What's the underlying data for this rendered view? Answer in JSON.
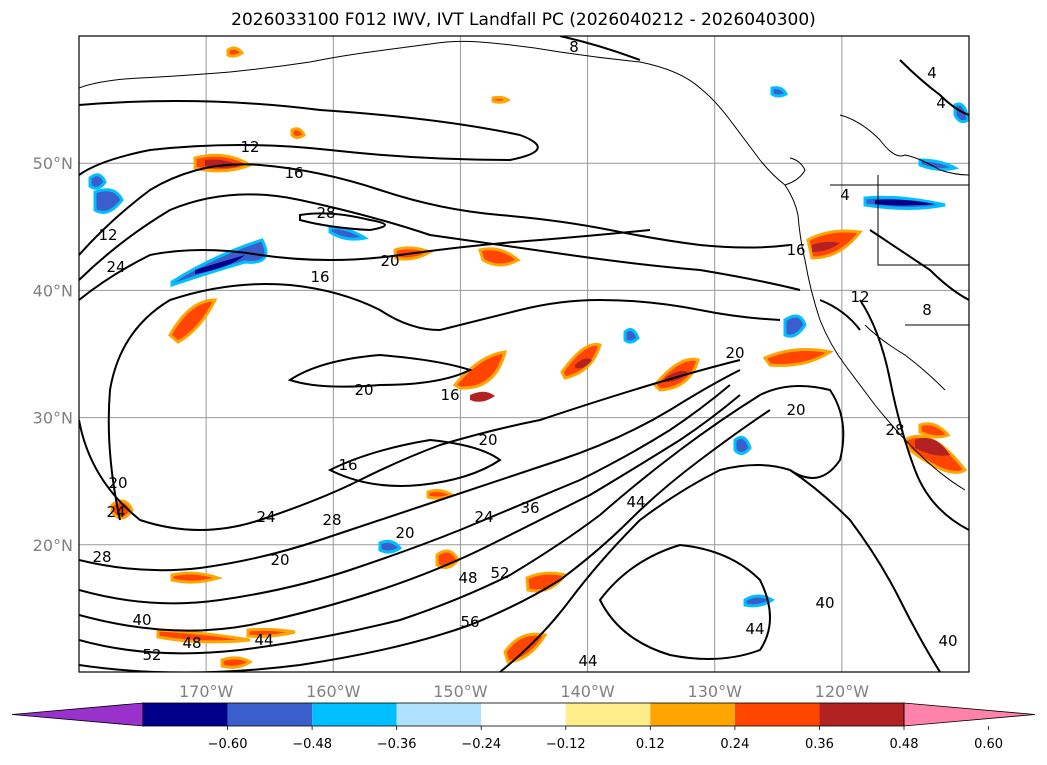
{
  "title": "2026033100 F012 IWV, IVT Landfall PC (2026040212 - 2026040300)",
  "map": {
    "lon_range": [
      -180,
      -110
    ],
    "lat_range": [
      10,
      60
    ],
    "lat_labels": [
      "50°N",
      "40°N",
      "30°N",
      "20°N"
    ],
    "lat_values": [
      50,
      40,
      30,
      20
    ],
    "lon_labels": [
      "170°W",
      "160°W",
      "150°W",
      "140°W",
      "130°W",
      "120°W"
    ],
    "lon_values": [
      -170,
      -160,
      -150,
      -140,
      -130,
      -120
    ],
    "grid": true,
    "contour_labels": [
      "8",
      "4",
      "4",
      "4",
      "12",
      "16",
      "12",
      "24",
      "28",
      "20",
      "16",
      "16",
      "20",
      "16",
      "20",
      "16",
      "24",
      "28",
      "24",
      "20",
      "20",
      "20",
      "36",
      "44",
      "48",
      "52",
      "56",
      "40",
      "48",
      "44",
      "52",
      "44",
      "40",
      "44",
      "40",
      "28",
      "20",
      "20",
      "12",
      "8",
      "28",
      "24"
    ]
  },
  "colorbar": {
    "ticks": [
      "−0.60",
      "−0.48",
      "−0.36",
      "−0.24",
      "−0.12",
      "0.12",
      "0.24",
      "0.36",
      "0.48",
      "0.60"
    ],
    "colors": [
      "#9932cc",
      "#00008b",
      "#3a5fcd",
      "#00bfff",
      "#b0e2ff",
      "#ffffff",
      "#ffec8b",
      "#ffa500",
      "#ff4500",
      "#b22222",
      "#ff82ab"
    ]
  }
}
